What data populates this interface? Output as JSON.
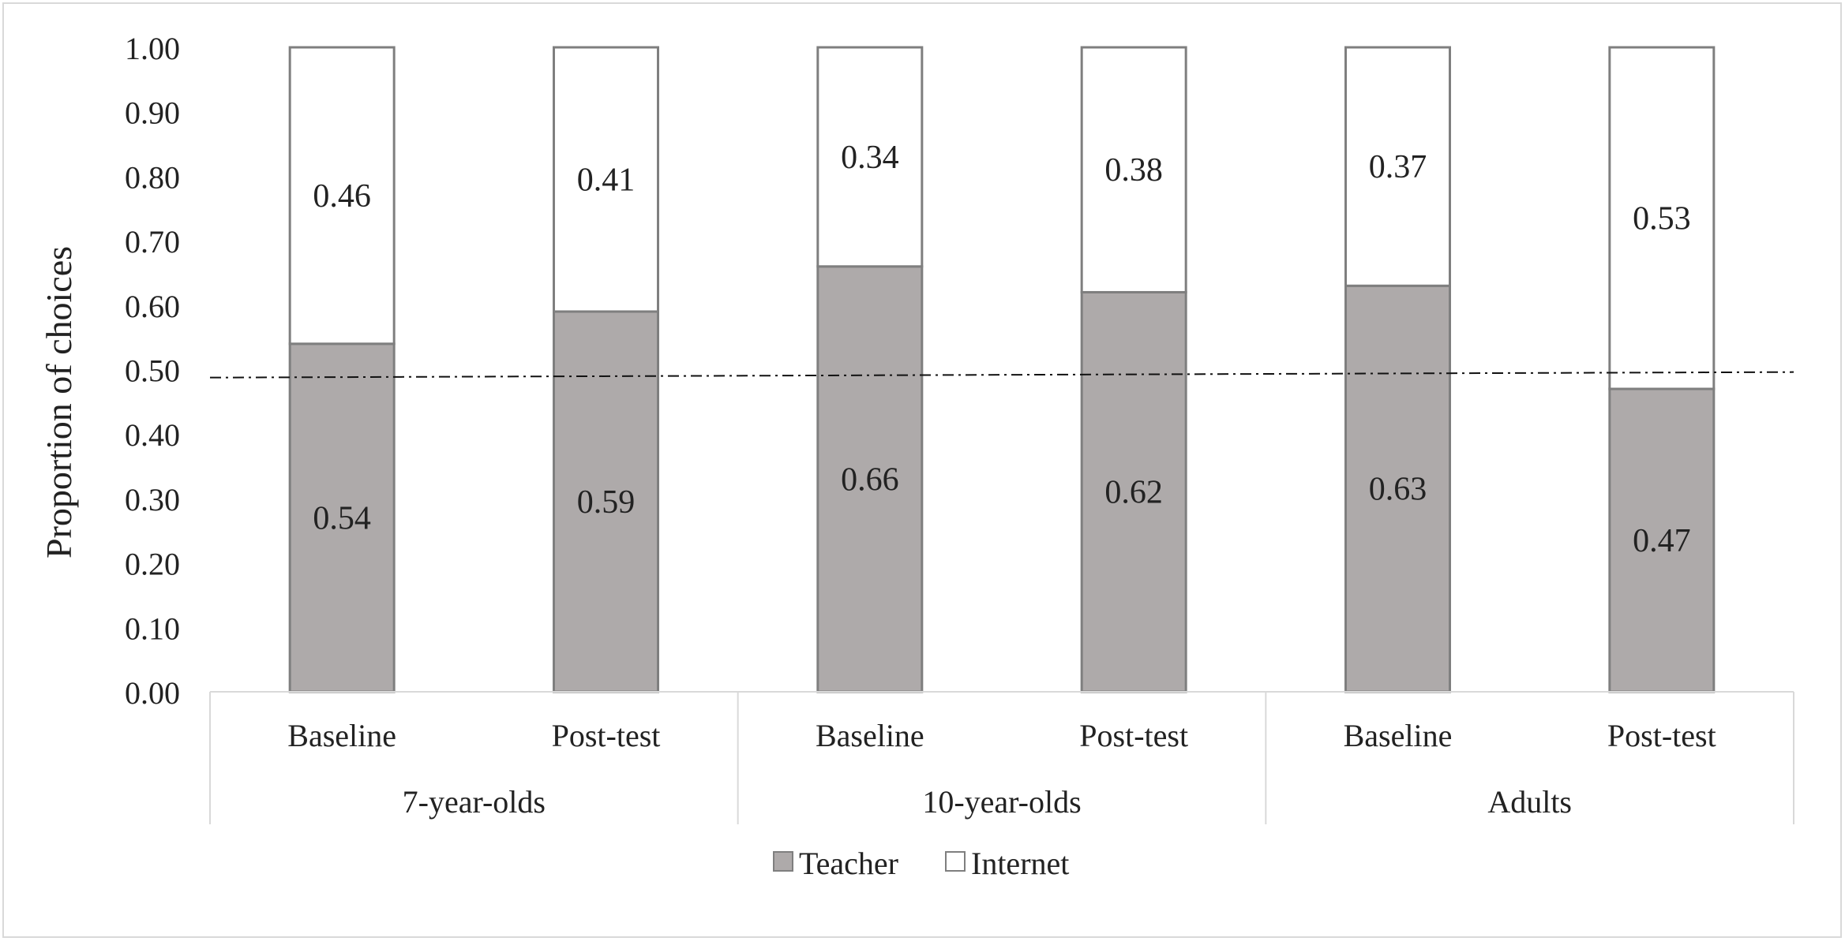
{
  "chart_data": {
    "type": "bar",
    "stacked": true,
    "ylabel": "Proportion of choices",
    "ylim": [
      0,
      1
    ],
    "yticks": [
      "0.00",
      "0.10",
      "0.20",
      "0.30",
      "0.40",
      "0.50",
      "0.60",
      "0.70",
      "0.80",
      "0.90",
      "1.00"
    ],
    "grid": false,
    "legend_position": "bottom",
    "reference_line": 0.49,
    "groups": [
      {
        "label": "7-year-olds",
        "categories": [
          "Baseline",
          "Post-test"
        ]
      },
      {
        "label": "10-year-olds",
        "categories": [
          "Baseline",
          "Post-test"
        ]
      },
      {
        "label": "Adults",
        "categories": [
          "Baseline",
          "Post-test"
        ]
      }
    ],
    "series": [
      {
        "name": "Teacher",
        "color": "#aeaaaa",
        "values": [
          0.54,
          0.59,
          0.66,
          0.62,
          0.63,
          0.47
        ],
        "labels": [
          "0.54",
          "0.59",
          "0.66",
          "0.62",
          "0.63",
          "0.47"
        ]
      },
      {
        "name": "Internet",
        "color": "#ffffff",
        "values": [
          0.46,
          0.41,
          0.34,
          0.38,
          0.37,
          0.53
        ],
        "labels": [
          "0.46",
          "0.41",
          "0.34",
          "0.38",
          "0.37",
          "0.53"
        ]
      }
    ]
  }
}
